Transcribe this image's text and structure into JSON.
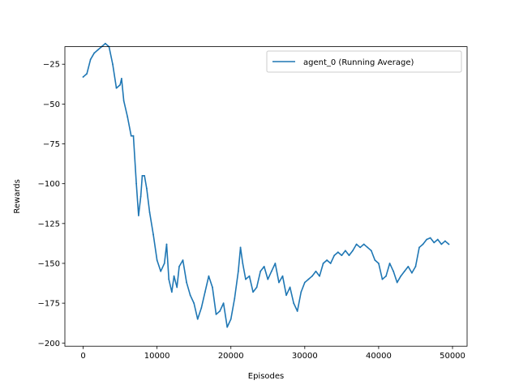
{
  "chart_data": {
    "type": "line",
    "title": "",
    "xlabel": "Episodes",
    "ylabel": "Rewards",
    "xlim": [
      -2475,
      51975
    ],
    "ylim": [
      -202,
      -14
    ],
    "xticks": [
      0,
      10000,
      20000,
      30000,
      40000,
      50000
    ],
    "yticks": [
      -200,
      -175,
      -150,
      -125,
      -100,
      -75,
      -50,
      -25
    ],
    "grid": false,
    "legend_position": "top-right",
    "series": [
      {
        "name": "agent_0 (Running Average)",
        "color": "#1f77b4",
        "x": [
          0,
          500,
          1000,
          1500,
          2000,
          2500,
          3000,
          3500,
          4000,
          4500,
          5000,
          5200,
          5500,
          6000,
          6500,
          6800,
          7200,
          7500,
          7800,
          8000,
          8300,
          8600,
          9000,
          9500,
          10000,
          10500,
          11000,
          11300,
          11600,
          12000,
          12300,
          12700,
          13000,
          13500,
          14000,
          14500,
          15000,
          15500,
          16000,
          16500,
          17000,
          17500,
          18000,
          18500,
          19000,
          19500,
          20000,
          20500,
          21000,
          21300,
          21600,
          22000,
          22500,
          23000,
          23500,
          24000,
          24500,
          25000,
          25500,
          26000,
          26500,
          27000,
          27500,
          28000,
          28500,
          29000,
          29500,
          30000,
          30500,
          31000,
          31500,
          32000,
          32500,
          33000,
          33500,
          34000,
          34500,
          35000,
          35500,
          36000,
          36500,
          37000,
          37500,
          38000,
          38500,
          39000,
          39500,
          40000,
          40500,
          41000,
          41500,
          42000,
          42500,
          43000,
          43500,
          44000,
          44500,
          45000,
          45500,
          46000,
          46500,
          47000,
          47500,
          48000,
          48500,
          49000,
          49500
        ],
        "y": [
          -33,
          -31,
          -22,
          -18,
          -16,
          -14,
          -12,
          -14,
          -25,
          -40,
          -38,
          -34,
          -48,
          -58,
          -70,
          -70,
          -100,
          -120,
          -108,
          -95,
          -95,
          -103,
          -118,
          -132,
          -148,
          -155,
          -150,
          -138,
          -160,
          -168,
          -158,
          -165,
          -152,
          -148,
          -162,
          -170,
          -175,
          -185,
          -178,
          -168,
          -158,
          -165,
          -182,
          -180,
          -175,
          -190,
          -185,
          -172,
          -155,
          -140,
          -150,
          -160,
          -158,
          -168,
          -165,
          -155,
          -152,
          -160,
          -155,
          -150,
          -162,
          -158,
          -170,
          -165,
          -175,
          -180,
          -168,
          -162,
          -160,
          -158,
          -155,
          -158,
          -150,
          -148,
          -150,
          -145,
          -143,
          -145,
          -142,
          -145,
          -142,
          -138,
          -140,
          -138,
          -140,
          -142,
          -148,
          -150,
          -160,
          -158,
          -150,
          -155,
          -162,
          -158,
          -155,
          -152,
          -156,
          -152,
          -140,
          -138,
          -135,
          -134,
          -137,
          -135,
          -138,
          -136,
          -138
        ]
      }
    ]
  }
}
